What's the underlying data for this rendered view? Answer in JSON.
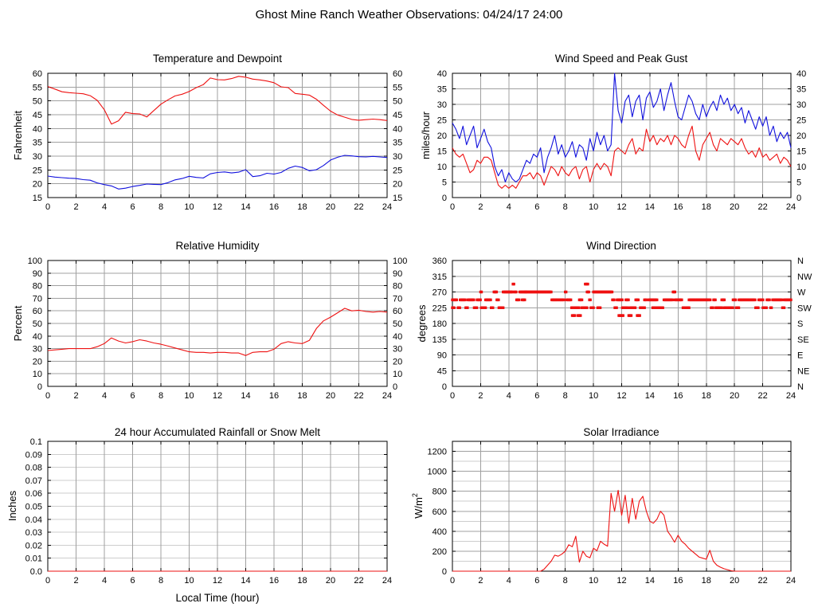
{
  "page_title": "Ghost Mine Ranch Weather Observations: 04/24/17 24:00",
  "colors": {
    "series_red": "#ee1111",
    "series_blue": "#1111dd",
    "grid": "#a0a0a0",
    "grid_light": "#cdcdcd",
    "frame": "#000000",
    "text": "#000000",
    "background": "#ffffff"
  },
  "xticks": {
    "values": [
      0,
      2,
      4,
      6,
      8,
      10,
      12,
      14,
      16,
      18,
      20,
      22,
      24
    ],
    "labels": [
      "0",
      "2",
      "4",
      "6",
      "8",
      "10",
      "12",
      "14",
      "16",
      "18",
      "20",
      "22",
      "24"
    ]
  },
  "chart_data": [
    {
      "type": "line",
      "title": "Temperature and Dewpoint",
      "ylabel": "Fahrenheit",
      "xlim": [
        0,
        24
      ],
      "ylim": [
        15,
        60
      ],
      "mirror_labels": true,
      "yticks": {
        "values": [
          15,
          20,
          25,
          30,
          35,
          40,
          45,
          50,
          55,
          60
        ],
        "labels": [
          "15",
          "20",
          "25",
          "30",
          "35",
          "40",
          "45",
          "50",
          "55",
          "60"
        ]
      },
      "series": [
        {
          "name": "temperature",
          "color": "#ee1111",
          "dt": 0.5,
          "values": [
            55.2,
            54.3,
            53.3,
            53.0,
            52.8,
            52.6,
            51.9,
            50.2,
            46.8,
            41.6,
            42.8,
            45.9,
            45.4,
            45.3,
            44.2,
            46.5,
            48.8,
            50.4,
            51.8,
            52.4,
            53.4,
            54.8,
            55.9,
            58.3,
            57.7,
            57.6,
            58.1,
            58.9,
            58.6,
            57.9,
            57.6,
            57.2,
            56.6,
            55.1,
            54.8,
            52.7,
            52.4,
            52.1,
            50.6,
            48.4,
            46.3,
            44.9,
            44.1,
            43.3,
            43.0,
            43.2,
            43.4,
            43.2,
            42.9
          ]
        },
        {
          "name": "dewpoint",
          "color": "#1111dd",
          "dt": 0.5,
          "values": [
            22.8,
            22.4,
            22.2,
            22.0,
            21.9,
            21.5,
            21.3,
            20.3,
            19.7,
            19.2,
            18.1,
            18.4,
            19.0,
            19.4,
            19.9,
            19.8,
            19.7,
            20.4,
            21.4,
            21.9,
            22.7,
            22.3,
            22.1,
            23.6,
            24.1,
            24.3,
            23.9,
            24.2,
            25.1,
            22.6,
            22.9,
            23.8,
            23.5,
            24.1,
            25.6,
            26.4,
            25.9,
            24.7,
            25.1,
            26.6,
            28.6,
            29.6,
            30.3,
            30.1,
            29.8,
            29.7,
            29.9,
            29.7,
            29.5
          ]
        }
      ]
    },
    {
      "type": "line",
      "title": "Wind Speed and Peak Gust",
      "ylabel": "miles/hour",
      "xlim": [
        0,
        24
      ],
      "ylim": [
        0,
        40
      ],
      "mirror_labels": true,
      "yticks": {
        "values": [
          0,
          5,
          10,
          15,
          20,
          25,
          30,
          35,
          40
        ],
        "labels": [
          "0",
          "5",
          "10",
          "15",
          "20",
          "25",
          "30",
          "35",
          "40"
        ]
      },
      "series": [
        {
          "name": "peak-gust",
          "color": "#1111dd",
          "dt": 0.25,
          "values": [
            24,
            22,
            19,
            23,
            17,
            20,
            23,
            16,
            19,
            22,
            18,
            16,
            10,
            7,
            9,
            5,
            8,
            6,
            5,
            6,
            9,
            12,
            11,
            14,
            13,
            16,
            8,
            13,
            16,
            20,
            14,
            17,
            13,
            15,
            18,
            13,
            17,
            16,
            12,
            19,
            15,
            21,
            17,
            20,
            15,
            17,
            40,
            28,
            24,
            31,
            33,
            26,
            31,
            33,
            25,
            32,
            34,
            29,
            31,
            35,
            28,
            33,
            37,
            31,
            26,
            25,
            29,
            33,
            31,
            27,
            25,
            30,
            26,
            29,
            31,
            28,
            33,
            30,
            32,
            28,
            30,
            27,
            29,
            24,
            28,
            25,
            22,
            26,
            23,
            26,
            20,
            23,
            18,
            21,
            19,
            21,
            16
          ]
        },
        {
          "name": "wind-speed",
          "color": "#ee1111",
          "dt": 0.25,
          "values": [
            16,
            14,
            13,
            14,
            11,
            8,
            9,
            12,
            11,
            13,
            13,
            12,
            8,
            4,
            3,
            4,
            3,
            4,
            3,
            5,
            7,
            7,
            8,
            6,
            8,
            7,
            4,
            7,
            10,
            9,
            7,
            10,
            8,
            7,
            9,
            10,
            6,
            9,
            10,
            5,
            9,
            11,
            9,
            11,
            10,
            7,
            15,
            16,
            15,
            14,
            17,
            19,
            14,
            16,
            15,
            22,
            18,
            20,
            17,
            19,
            18,
            20,
            17,
            20,
            19,
            17,
            16,
            20,
            23,
            15,
            12,
            17,
            19,
            21,
            17,
            15,
            19,
            18,
            17,
            19,
            18,
            17,
            19,
            16,
            14,
            15,
            13,
            16,
            13,
            14,
            12,
            13,
            14,
            11,
            13,
            12,
            10
          ]
        }
      ]
    },
    {
      "type": "line",
      "title": "Relative Humidity",
      "ylabel": "Percent",
      "xlim": [
        0,
        24
      ],
      "ylim": [
        0,
        100
      ],
      "mirror_labels": true,
      "yticks": {
        "values": [
          0,
          10,
          20,
          30,
          40,
          50,
          60,
          70,
          80,
          90,
          100
        ],
        "labels": [
          "0",
          "10",
          "20",
          "30",
          "40",
          "50",
          "60",
          "70",
          "80",
          "90",
          "100"
        ]
      },
      "series": [
        {
          "name": "relative-humidity",
          "color": "#ee1111",
          "dt": 0.5,
          "values": [
            28.5,
            29.0,
            29.5,
            30.0,
            30.0,
            30.0,
            30.0,
            31.5,
            34.0,
            38.5,
            36.0,
            34.5,
            35.5,
            37.0,
            36.0,
            34.5,
            33.5,
            32.0,
            30.5,
            29.0,
            27.5,
            27.0,
            27.0,
            26.5,
            27.0,
            27.0,
            26.5,
            26.5,
            24.5,
            27.0,
            27.5,
            27.5,
            29.5,
            34.0,
            35.5,
            34.5,
            34.0,
            36.5,
            46.0,
            52.0,
            55.0,
            58.5,
            62.0,
            60.0,
            60.5,
            59.5,
            59.0,
            59.5,
            59.0
          ]
        }
      ]
    },
    {
      "type": "scatter",
      "title": "Wind Direction",
      "ylabel": "degrees",
      "xlim": [
        0,
        24
      ],
      "ylim": [
        0,
        360
      ],
      "yticks": {
        "values": [
          0,
          45,
          90,
          135,
          180,
          225,
          270,
          315,
          360
        ],
        "labels": [
          "0",
          "45",
          "90",
          "135",
          "180",
          "225",
          "270",
          "315",
          "360"
        ]
      },
      "right_labels": [
        "N",
        "NE",
        "E",
        "SE",
        "S",
        "SW",
        "W",
        "NW",
        "N"
      ],
      "series": [
        {
          "name": "wind-direction",
          "color": "#ee1111",
          "segments": [
            [
              0.0,
              0.35,
              247.5
            ],
            [
              0.0,
              0.12,
              225
            ],
            [
              0.4,
              0.55,
              225
            ],
            [
              0.55,
              0.95,
              247.5
            ],
            [
              0.95,
              1.1,
              225
            ],
            [
              1.1,
              1.55,
              247.5
            ],
            [
              1.55,
              1.75,
              225
            ],
            [
              1.75,
              2.0,
              247.5
            ],
            [
              2.0,
              2.08,
              270
            ],
            [
              2.05,
              2.35,
              225
            ],
            [
              2.35,
              2.75,
              247.5
            ],
            [
              2.75,
              2.9,
              225
            ],
            [
              2.95,
              3.15,
              270
            ],
            [
              3.15,
              3.3,
              247.5
            ],
            [
              3.3,
              3.6,
              225
            ],
            [
              3.6,
              4.28,
              270
            ],
            [
              4.3,
              4.38,
              292.5
            ],
            [
              4.4,
              4.55,
              270
            ],
            [
              4.55,
              4.75,
              247.5
            ],
            [
              4.78,
              5.2,
              270
            ],
            [
              4.95,
              5.15,
              247.5
            ],
            [
              5.2,
              7.05,
              270
            ],
            [
              7.05,
              7.5,
              247.5
            ],
            [
              7.55,
              7.95,
              247.5
            ],
            [
              8.0,
              8.1,
              270
            ],
            [
              8.1,
              8.45,
              247.5
            ],
            [
              8.45,
              8.6,
              225
            ],
            [
              8.5,
              8.68,
              202.5
            ],
            [
              8.68,
              9.0,
              225
            ],
            [
              8.9,
              9.12,
              202.5
            ],
            [
              9.0,
              9.18,
              247.5
            ],
            [
              9.18,
              9.55,
              225
            ],
            [
              9.42,
              9.6,
              292.5
            ],
            [
              9.55,
              9.72,
              270
            ],
            [
              9.72,
              9.82,
              247.5
            ],
            [
              9.82,
              10.0,
              225
            ],
            [
              10.0,
              11.35,
              270
            ],
            [
              10.3,
              10.48,
              225
            ],
            [
              11.35,
              11.52,
              247.5
            ],
            [
              11.52,
              11.68,
              225
            ],
            [
              11.68,
              12.05,
              247.5
            ],
            [
              11.8,
              12.12,
              202.5
            ],
            [
              12.05,
              12.42,
              225
            ],
            [
              12.3,
              12.52,
              247.5
            ],
            [
              12.5,
              12.72,
              202.5
            ],
            [
              12.6,
              13.0,
              225
            ],
            [
              13.0,
              13.18,
              247.5
            ],
            [
              13.1,
              13.32,
              202.5
            ],
            [
              13.32,
              13.62,
              225
            ],
            [
              13.62,
              13.78,
              247.5
            ],
            [
              13.9,
              14.5,
              247.5
            ],
            [
              14.2,
              14.42,
              225
            ],
            [
              14.5,
              14.95,
              225
            ],
            [
              15.0,
              15.62,
              247.5
            ],
            [
              15.65,
              15.78,
              270
            ],
            [
              15.78,
              16.3,
              247.5
            ],
            [
              16.35,
              16.52,
              225
            ],
            [
              16.6,
              16.78,
              225
            ],
            [
              16.78,
              18.3,
              247.5
            ],
            [
              18.35,
              18.52,
              225
            ],
            [
              18.52,
              18.68,
              247.5
            ],
            [
              18.68,
              19.1,
              225
            ],
            [
              19.1,
              19.28,
              247.5
            ],
            [
              19.28,
              19.9,
              225
            ],
            [
              19.9,
              20.12,
              247.5
            ],
            [
              20.12,
              20.32,
              225
            ],
            [
              20.32,
              21.5,
              247.5
            ],
            [
              21.5,
              21.72,
              225
            ],
            [
              21.72,
              22.02,
              247.5
            ],
            [
              22.02,
              22.3,
              225
            ],
            [
              22.3,
              22.52,
              247.5
            ],
            [
              22.56,
              22.66,
              225
            ],
            [
              22.7,
              23.4,
              247.5
            ],
            [
              23.4,
              23.52,
              225
            ],
            [
              23.52,
              24.0,
              247.5
            ]
          ]
        }
      ]
    },
    {
      "type": "line",
      "title": "24 hour Accumulated Rainfall or Snow Melt",
      "ylabel": "Inches",
      "xlabel": "Local Time (hour)",
      "xlim": [
        0,
        24
      ],
      "ylim": [
        0,
        0.1
      ],
      "y_grid_light": true,
      "yticks": {
        "values": [
          0,
          0.01,
          0.02,
          0.03,
          0.04,
          0.05,
          0.06,
          0.07,
          0.08,
          0.09,
          0.1
        ],
        "labels": [
          "0.0",
          "0.01",
          "0.02",
          "0.03",
          "0.04",
          "0.05",
          "0.06",
          "0.07",
          "0.08",
          "0.09",
          "0.1"
        ]
      },
      "series": [
        {
          "name": "rainfall",
          "color": "#ee1111",
          "points": [
            [
              0,
              0
            ],
            [
              24,
              0
            ]
          ]
        }
      ]
    },
    {
      "type": "line",
      "title": "Solar Irradiance",
      "ylabel": "W/m",
      "ylabel_sup": "2",
      "xlim": [
        0,
        24
      ],
      "ylim": [
        0,
        1300
      ],
      "yminor": [
        100,
        300,
        500,
        700,
        900,
        1100
      ],
      "yticks": {
        "values": [
          0,
          200,
          400,
          600,
          800,
          1000,
          1200
        ],
        "labels": [
          "0",
          "200",
          "400",
          "600",
          "800",
          "1000",
          "1200"
        ]
      },
      "series": [
        {
          "name": "solar-irradiance",
          "color": "#ee1111",
          "dt": 0.25,
          "values": [
            0,
            0,
            0,
            0,
            0,
            0,
            0,
            0,
            0,
            0,
            0,
            0,
            0,
            0,
            0,
            0,
            0,
            0,
            0,
            0,
            0,
            0,
            0,
            0,
            0,
            0,
            20,
            60,
            100,
            160,
            150,
            170,
            200,
            265,
            245,
            350,
            90,
            200,
            150,
            135,
            230,
            205,
            300,
            270,
            250,
            780,
            600,
            810,
            560,
            760,
            480,
            730,
            520,
            700,
            750,
            600,
            500,
            480,
            520,
            600,
            560,
            400,
            350,
            290,
            360,
            300,
            270,
            230,
            200,
            170,
            140,
            130,
            120,
            210,
            100,
            60,
            40,
            25,
            15,
            5,
            0,
            0,
            0,
            0,
            0,
            0,
            0,
            0,
            0,
            0,
            0,
            0,
            0,
            0,
            0,
            0,
            0
          ]
        }
      ]
    }
  ]
}
